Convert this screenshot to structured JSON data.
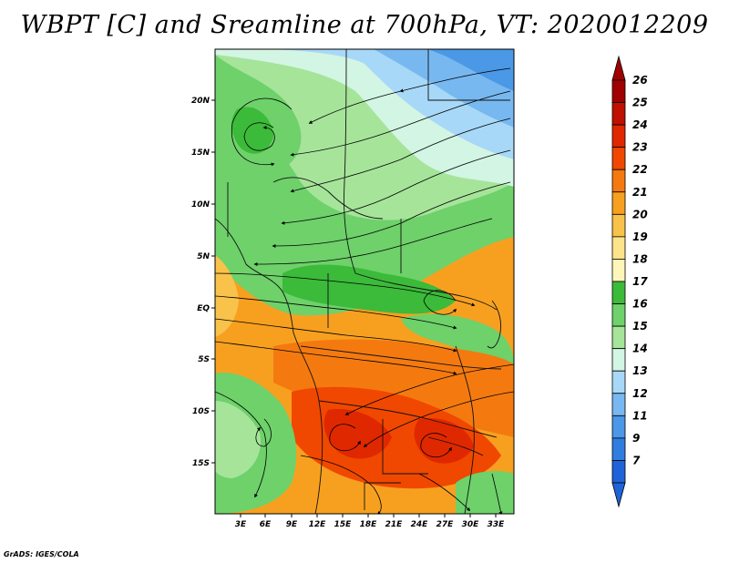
{
  "title": "WBPT [C] and Sreamline at 700hPa, VT: 2020012209",
  "credit": "GrADS: IGES/COLA",
  "map": {
    "variable": "Wet-bulb potential temperature",
    "units": "C",
    "level": "700hPa",
    "valid_time": "2020012209",
    "lat_labels": [
      "20N",
      "15N",
      "10N",
      "5N",
      "EQ",
      "5S",
      "10S",
      "15S"
    ],
    "lon_labels": [
      "3E",
      "6E",
      "9E",
      "12E",
      "15E",
      "18E",
      "21E",
      "24E",
      "27E",
      "30E",
      "33E"
    ]
  },
  "colorbar": {
    "levels": [
      "26",
      "25",
      "24",
      "23",
      "22",
      "21",
      "20",
      "19",
      "18",
      "17",
      "16",
      "15",
      "14",
      "13",
      "12",
      "11",
      "9",
      "7"
    ],
    "colors": [
      "#a00000",
      "#c01000",
      "#e02800",
      "#f04800",
      "#f47a10",
      "#f7a020",
      "#f9c24a",
      "#fde38a",
      "#fdf6b8",
      "#3cba3a",
      "#6ed16a",
      "#a6e49a",
      "#d2f5e4",
      "#a8d8f8",
      "#78b8f0",
      "#4a98e6",
      "#2e7ee0",
      "#1e64d8"
    ]
  }
}
